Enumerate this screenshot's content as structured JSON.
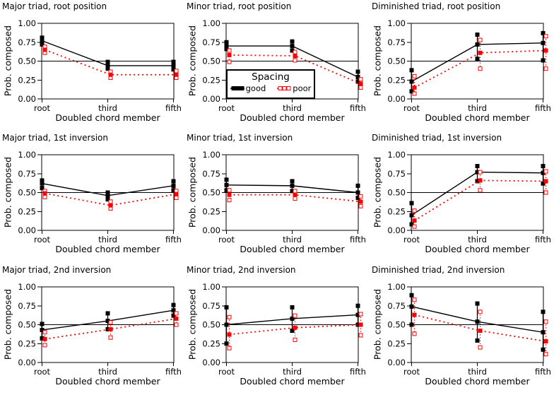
{
  "figure": {
    "background": "#ffffff",
    "colors": {
      "good": "#000000",
      "poor": "#ff0000",
      "reference_line": "#000000",
      "frame": "#000000"
    }
  },
  "legend": {
    "title": "Spacing",
    "entries": [
      {
        "name": "good",
        "color": "#000000",
        "marker": "filled-square",
        "line": "solid"
      },
      {
        "name": "poor",
        "color": "#ff0000",
        "marker": "open-square",
        "line": "dotted"
      }
    ],
    "host_chart": "Minor triad, root position",
    "position": "bottom-left-of-plot"
  },
  "chart_data": [
    {
      "type": "line",
      "title": "Major triad, root position",
      "xlabel": "Doubled chord member",
      "ylabel": "Prob. composed",
      "categories": [
        "root",
        "third",
        "fifth"
      ],
      "ylim": [
        0,
        1
      ],
      "yticks": [
        0,
        0.25,
        0.5,
        0.75,
        1
      ],
      "reference_y": 0.5,
      "error_bars": true,
      "series": [
        {
          "name": "good",
          "values": [
            0.77,
            0.44,
            0.44
          ],
          "lo": [
            0.72,
            0.4,
            0.39
          ],
          "hi": [
            0.81,
            0.49,
            0.49
          ]
        },
        {
          "name": "poor",
          "values": [
            0.65,
            0.32,
            0.32
          ],
          "lo": [
            0.61,
            0.28,
            0.28
          ],
          "hi": [
            0.69,
            0.36,
            0.37
          ]
        }
      ]
    },
    {
      "type": "line",
      "title": "Minor triad, root position",
      "xlabel": "Doubled chord member",
      "ylabel": "Prob. composed",
      "categories": [
        "root",
        "third",
        "fifth"
      ],
      "ylim": [
        0,
        1
      ],
      "yticks": [
        0,
        0.25,
        0.5,
        0.75,
        1
      ],
      "reference_y": 0.5,
      "error_bars": true,
      "series": [
        {
          "name": "good",
          "values": [
            0.7,
            0.7,
            0.29
          ],
          "lo": [
            0.66,
            0.64,
            0.23
          ],
          "hi": [
            0.75,
            0.76,
            0.36
          ]
        },
        {
          "name": "poor",
          "values": [
            0.58,
            0.57,
            0.2
          ],
          "lo": [
            0.49,
            0.51,
            0.15
          ],
          "hi": [
            0.64,
            0.62,
            0.26
          ]
        }
      ]
    },
    {
      "type": "line",
      "title": "Diminished triad, root position",
      "xlabel": "Doubled chord member",
      "ylabel": "Prob. composed",
      "categories": [
        "root",
        "third",
        "fifth"
      ],
      "ylim": [
        0,
        1
      ],
      "yticks": [
        0,
        0.25,
        0.5,
        0.75,
        1
      ],
      "reference_y": 0.5,
      "error_bars": true,
      "series": [
        {
          "name": "good",
          "values": [
            0.23,
            0.72,
            0.74
          ],
          "lo": [
            0.1,
            0.53,
            0.51
          ],
          "hi": [
            0.38,
            0.85,
            0.87
          ]
        },
        {
          "name": "poor",
          "values": [
            0.15,
            0.61,
            0.64
          ],
          "lo": [
            0.07,
            0.4,
            0.4
          ],
          "hi": [
            0.3,
            0.78,
            0.83
          ]
        }
      ]
    },
    {
      "type": "line",
      "title": "Major triad, 1st inversion",
      "xlabel": "Doubled chord member",
      "ylabel": "Prob. composed",
      "categories": [
        "root",
        "third",
        "fifth"
      ],
      "ylim": [
        0,
        1
      ],
      "yticks": [
        0,
        0.25,
        0.5,
        0.75,
        1
      ],
      "reference_y": 0.5,
      "error_bars": true,
      "series": [
        {
          "name": "good",
          "values": [
            0.62,
            0.46,
            0.59
          ],
          "lo": [
            0.56,
            0.41,
            0.53
          ],
          "hi": [
            0.66,
            0.5,
            0.65
          ]
        },
        {
          "name": "poor",
          "values": [
            0.49,
            0.33,
            0.48
          ],
          "lo": [
            0.44,
            0.29,
            0.43
          ],
          "hi": [
            0.52,
            0.38,
            0.52
          ]
        }
      ]
    },
    {
      "type": "line",
      "title": "Minor triad, 1st inversion",
      "xlabel": "Doubled chord member",
      "ylabel": "Prob. composed",
      "categories": [
        "root",
        "third",
        "fifth"
      ],
      "ylim": [
        0,
        1
      ],
      "yticks": [
        0,
        0.25,
        0.5,
        0.75,
        1
      ],
      "reference_y": 0.5,
      "error_bars": true,
      "series": [
        {
          "name": "good",
          "values": [
            0.6,
            0.59,
            0.5
          ],
          "lo": [
            0.53,
            0.52,
            0.43
          ],
          "hi": [
            0.67,
            0.65,
            0.59
          ]
        },
        {
          "name": "poor",
          "values": [
            0.47,
            0.47,
            0.38
          ],
          "lo": [
            0.4,
            0.42,
            0.32
          ],
          "hi": [
            0.53,
            0.52,
            0.45
          ]
        }
      ]
    },
    {
      "type": "line",
      "title": "Diminished triad, 1st inversion",
      "xlabel": "Doubled chord member",
      "ylabel": "Prob. composed",
      "categories": [
        "root",
        "third",
        "fifth"
      ],
      "ylim": [
        0,
        1
      ],
      "yticks": [
        0,
        0.25,
        0.5,
        0.75,
        1
      ],
      "reference_y": 0.5,
      "error_bars": true,
      "series": [
        {
          "name": "good",
          "values": [
            0.2,
            0.77,
            0.76
          ],
          "lo": [
            0.08,
            0.65,
            0.62
          ],
          "hi": [
            0.36,
            0.85,
            0.85
          ]
        },
        {
          "name": "poor",
          "values": [
            0.13,
            0.66,
            0.65
          ],
          "lo": [
            0.05,
            0.53,
            0.5
          ],
          "hi": [
            0.26,
            0.77,
            0.78
          ]
        }
      ]
    },
    {
      "type": "line",
      "title": "Major triad, 2nd inversion",
      "xlabel": "Doubled chord member",
      "ylabel": "Prob. composed",
      "categories": [
        "root",
        "third",
        "fifth"
      ],
      "ylim": [
        0,
        1
      ],
      "yticks": [
        0,
        0.25,
        0.5,
        0.75,
        1
      ],
      "reference_y": 0.5,
      "error_bars": true,
      "series": [
        {
          "name": "good",
          "values": [
            0.43,
            0.55,
            0.69
          ],
          "lo": [
            0.32,
            0.44,
            0.62
          ],
          "hi": [
            0.51,
            0.65,
            0.76
          ]
        },
        {
          "name": "poor",
          "values": [
            0.31,
            0.44,
            0.58
          ],
          "lo": [
            0.23,
            0.33,
            0.5
          ],
          "hi": [
            0.4,
            0.53,
            0.65
          ]
        }
      ]
    },
    {
      "type": "line",
      "title": "Minor triad, 2nd inversion",
      "xlabel": "Doubled chord member",
      "ylabel": "Prob. composed",
      "categories": [
        "root",
        "third",
        "fifth"
      ],
      "ylim": [
        0,
        1
      ],
      "yticks": [
        0,
        0.25,
        0.5,
        0.75,
        1
      ],
      "reference_y": 0.5,
      "error_bars": true,
      "series": [
        {
          "name": "good",
          "values": [
            0.5,
            0.58,
            0.63
          ],
          "lo": [
            0.25,
            0.42,
            0.5
          ],
          "hi": [
            0.73,
            0.73,
            0.75
          ]
        },
        {
          "name": "poor",
          "values": [
            0.37,
            0.46,
            0.5
          ],
          "lo": [
            0.19,
            0.3,
            0.36
          ],
          "hi": [
            0.6,
            0.62,
            0.64
          ]
        }
      ]
    },
    {
      "type": "line",
      "title": "Diminished triad, 2nd inversion",
      "xlabel": "Doubled chord member",
      "ylabel": "Prob. composed",
      "categories": [
        "root",
        "third",
        "fifth"
      ],
      "ylim": [
        0,
        1
      ],
      "yticks": [
        0,
        0.25,
        0.5,
        0.75,
        1
      ],
      "reference_y": 0.5,
      "error_bars": true,
      "series": [
        {
          "name": "good",
          "values": [
            0.74,
            0.54,
            0.4
          ],
          "lo": [
            0.5,
            0.29,
            0.17
          ],
          "hi": [
            0.89,
            0.78,
            0.67
          ]
        },
        {
          "name": "poor",
          "values": [
            0.63,
            0.42,
            0.28
          ],
          "lo": [
            0.38,
            0.2,
            0.11
          ],
          "hi": [
            0.83,
            0.67,
            0.54
          ]
        }
      ]
    }
  ]
}
